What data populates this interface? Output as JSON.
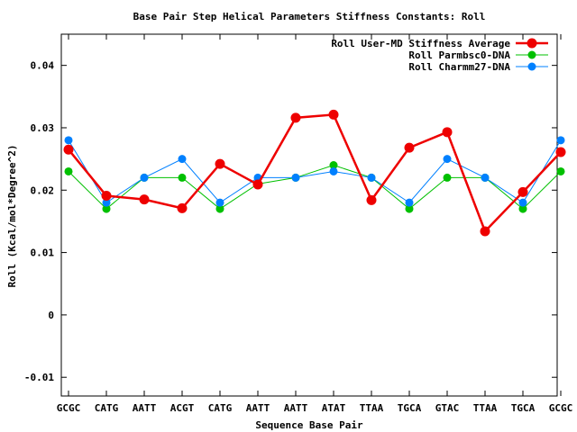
{
  "chart_data": {
    "type": "line",
    "title": "Base Pair Step Helical Parameters Stiffness Constants: Roll",
    "xlabel": "Sequence Base Pair",
    "ylabel": "Roll (Kcal/mol*Degree^2)",
    "categories": [
      "GCGC",
      "CATG",
      "AATT",
      "ACGT",
      "CATG",
      "AATT",
      "AATT",
      "ATAT",
      "TTAA",
      "TGCA",
      "GTAC",
      "TTAA",
      "TGCA",
      "GCGC"
    ],
    "ylim": [
      -0.013,
      0.045
    ],
    "yticks": [
      -0.01,
      0,
      0.01,
      0.02,
      0.03,
      0.04
    ],
    "ytick_labels": [
      "-0.01",
      "0",
      "0.01",
      "0.02",
      "0.03",
      "0.04"
    ],
    "grid": false,
    "legend_position": "top-right",
    "series": [
      {
        "name": "Roll User-MD Stiffness Average",
        "color": "#ee0000",
        "values": [
          0.0265,
          0.0191,
          0.0185,
          0.0171,
          0.0242,
          0.0209,
          0.0316,
          0.0321,
          0.0184,
          0.0268,
          0.0293,
          0.0134,
          0.0197,
          0.0261
        ]
      },
      {
        "name": "Roll Parmbsc0-DNA",
        "color": "#00c000",
        "values": [
          0.023,
          0.017,
          0.022,
          0.022,
          0.017,
          0.021,
          0.022,
          0.024,
          0.022,
          0.017,
          0.022,
          0.022,
          0.017,
          0.023
        ]
      },
      {
        "name": "Roll Charmm27-DNA",
        "color": "#0080ff",
        "values": [
          0.028,
          0.018,
          0.022,
          0.025,
          0.018,
          0.022,
          0.022,
          0.023,
          0.022,
          0.018,
          0.025,
          0.022,
          0.018,
          0.028
        ]
      }
    ]
  }
}
